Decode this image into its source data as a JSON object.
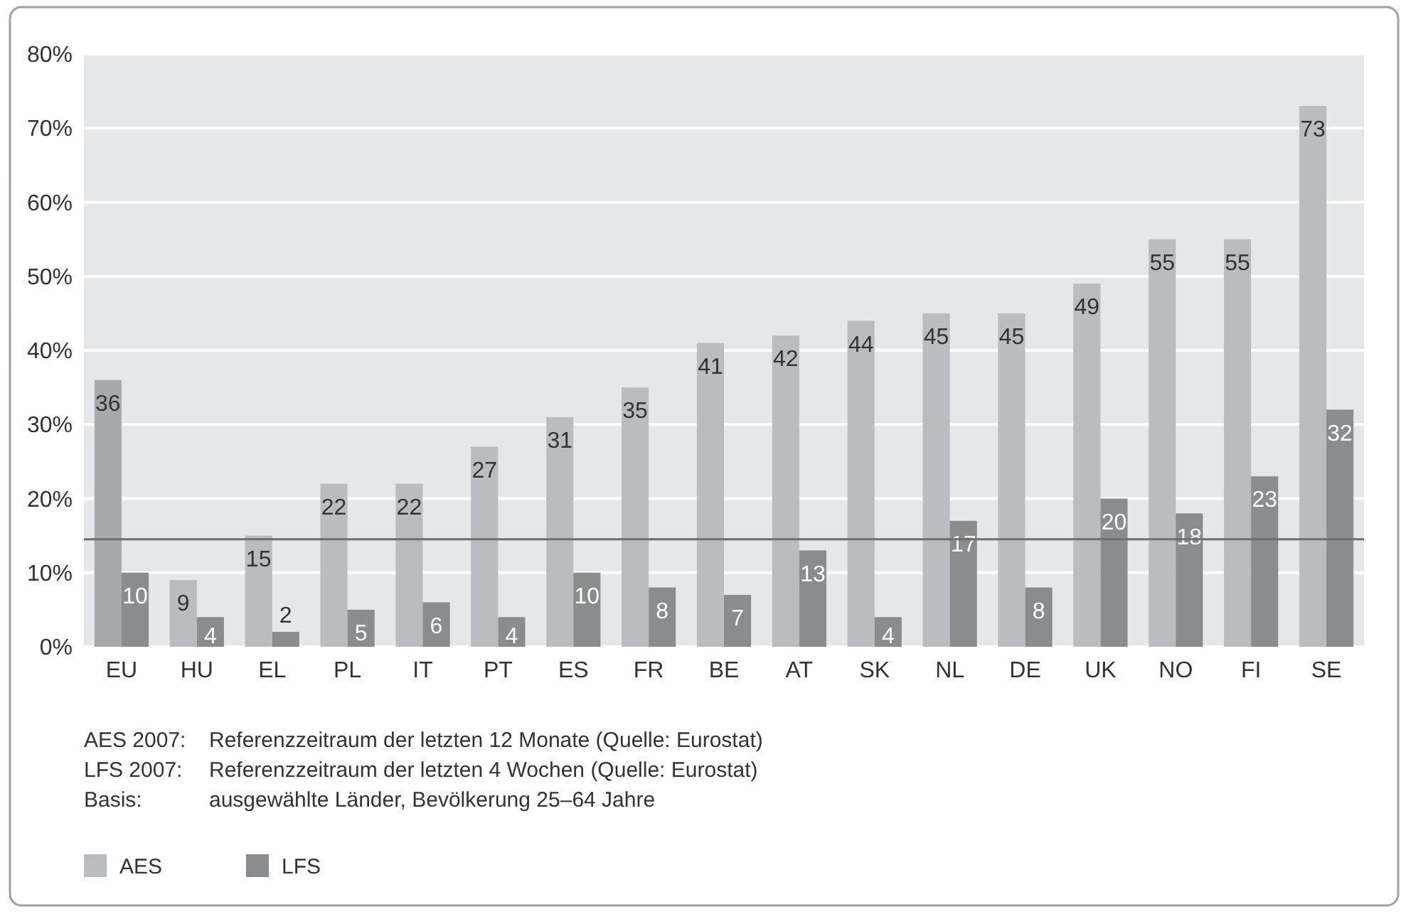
{
  "chart_data": {
    "type": "bar",
    "categories": [
      "EU",
      "HU",
      "EL",
      "PL",
      "IT",
      "PT",
      "ES",
      "FR",
      "BE",
      "AT",
      "SK",
      "NL",
      "DE",
      "UK",
      "NO",
      "FI",
      "SE"
    ],
    "series": [
      {
        "name": "AES",
        "color": "#bbbcc0",
        "colors": [
          "#a8a9ad",
          "#bbbcc0",
          "#bbbcc0",
          "#bbbcc0",
          "#bbbcc0",
          "#bbbcc0",
          "#bbbcc0",
          "#bbbcc0",
          "#bbbcc0",
          "#bbbcc0",
          "#bbbcc0",
          "#bbbcc0",
          "#bbbcc0",
          "#bbbcc0",
          "#bbbcc0",
          "#bbbcc0",
          "#bbbcc0"
        ],
        "values": [
          36,
          9,
          15,
          22,
          22,
          27,
          31,
          35,
          41,
          42,
          44,
          45,
          45,
          49,
          55,
          55,
          73
        ]
      },
      {
        "name": "LFS",
        "color": "#8b8c8e",
        "values": [
          10,
          4,
          2,
          5,
          6,
          4,
          10,
          8,
          7,
          13,
          4,
          17,
          8,
          20,
          18,
          23,
          32
        ]
      }
    ],
    "ylim": [
      0,
      80
    ],
    "yticks": [
      {
        "value": 0,
        "label": "0%"
      },
      {
        "value": 10,
        "label": "10%"
      },
      {
        "value": 20,
        "label": "20%"
      },
      {
        "value": 30,
        "label": "30%"
      },
      {
        "value": 40,
        "label": "40%"
      },
      {
        "value": 50,
        "label": "50%"
      },
      {
        "value": 60,
        "label": "60%"
      },
      {
        "value": 70,
        "label": "70%"
      },
      {
        "value": 80,
        "label": "80%"
      }
    ],
    "grid": "y",
    "legend": "bottom left",
    "data_labels": true,
    "ref_lines": [
      {
        "axis": "y",
        "value": 14.5,
        "color": "#6e6e6e"
      }
    ],
    "annotations": [
      "AES 2007: Referenzzeitraum der letzten 12 Monate (Quelle: Eurostat)",
      "LFS 2007: Referenzzeitraum der letzten 4 Wochen (Quelle: Eurostat)",
      "Basis: ausgewählte Länder, Bevölkerung 25–64 Jahre"
    ]
  }
}
